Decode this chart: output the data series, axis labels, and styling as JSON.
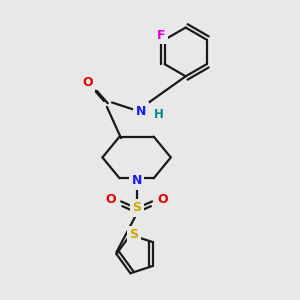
{
  "bg_color": "#e8e8e8",
  "bond_color": "#1a1a1a",
  "bw": 1.6,
  "atom_colors": {
    "N": "#1a1aff",
    "O": "#dd0000",
    "S_sulfonyl": "#ccaa00",
    "S_thio": "#ccaa00",
    "F": "#dd00dd",
    "H": "#008888"
  },
  "figsize": [
    3.0,
    3.0
  ],
  "dpi": 100
}
